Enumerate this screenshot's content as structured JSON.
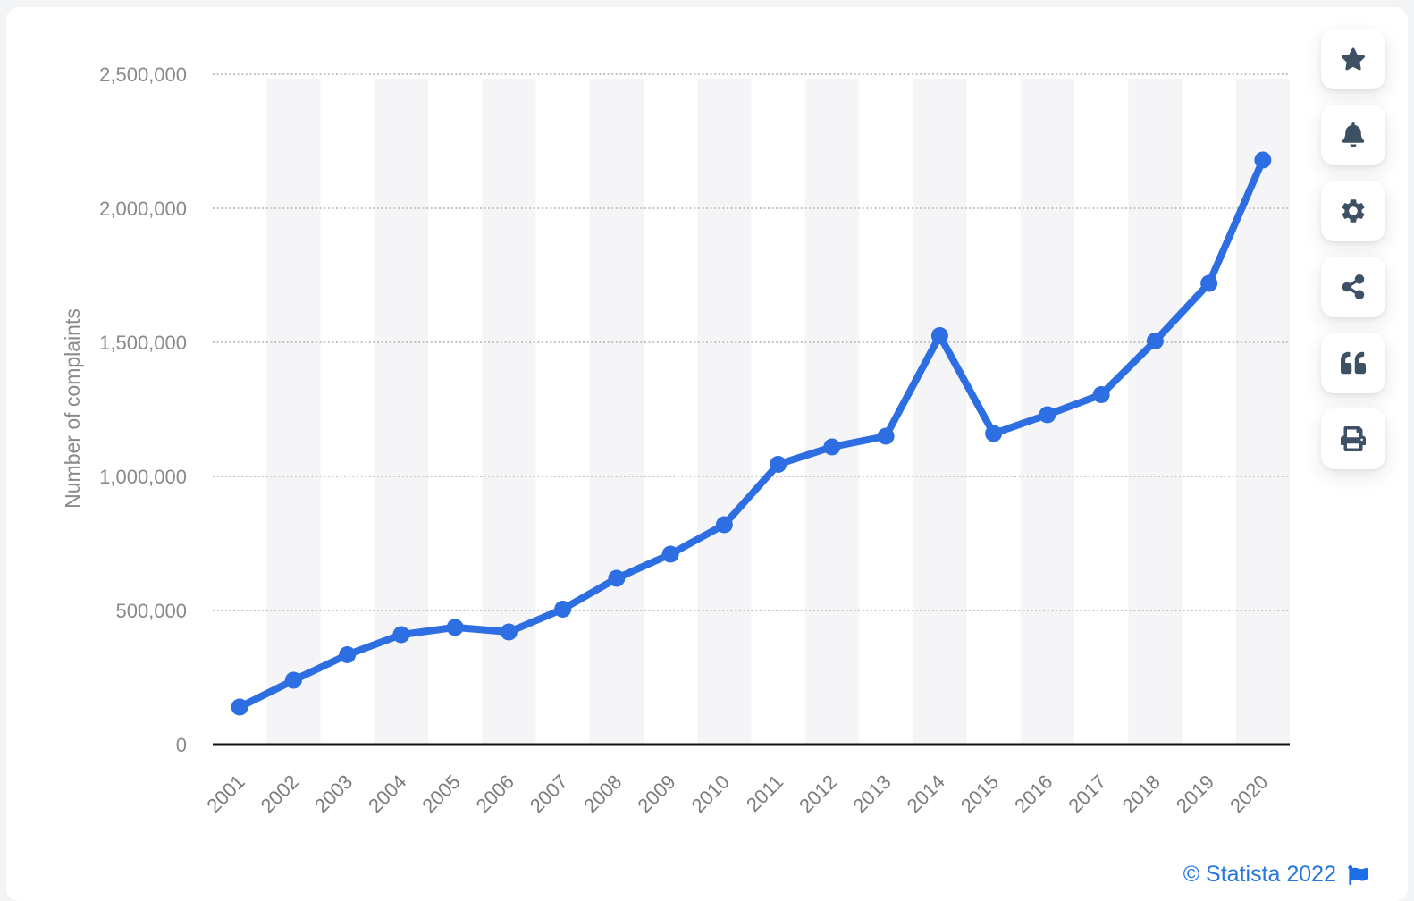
{
  "chart_data": {
    "type": "line",
    "title": "",
    "xlabel": "",
    "ylabel": "Number of complaints",
    "categories": [
      "2001",
      "2002",
      "2003",
      "2004",
      "2005",
      "2006",
      "2007",
      "2008",
      "2009",
      "2010",
      "2011",
      "2012",
      "2013",
      "2014",
      "2015",
      "2016",
      "2017",
      "2018",
      "2019",
      "2020"
    ],
    "series": [
      {
        "name": "Number of complaints",
        "color": "#2d6ee3",
        "values": [
          140000,
          240000,
          335000,
          410000,
          437000,
          420000,
          505000,
          620000,
          710000,
          820000,
          1045000,
          1110000,
          1150000,
          1525000,
          1160000,
          1230000,
          1305000,
          1505000,
          1720000,
          2180000
        ]
      }
    ],
    "ylim": [
      0,
      2500000
    ],
    "ytick_step": 500000,
    "y_tick_labels": [
      "0",
      "500,000",
      "1,000,000",
      "1,500,000",
      "2,000,000",
      "2,500,000"
    ],
    "grid": "horizontal dotted",
    "background_bands": "alternating vertical year stripes",
    "legend": "none"
  },
  "toolbar": {
    "buttons": [
      {
        "name": "favorite",
        "icon": "star-icon"
      },
      {
        "name": "alerts",
        "icon": "bell-icon"
      },
      {
        "name": "settings",
        "icon": "gear-icon"
      },
      {
        "name": "share",
        "icon": "share-icon"
      },
      {
        "name": "cite",
        "icon": "quote-icon"
      },
      {
        "name": "print",
        "icon": "printer-icon"
      }
    ]
  },
  "credit": {
    "text": "© Statista 2022",
    "flag_icon": "flag-icon"
  },
  "colors": {
    "line": "#2d6ee3",
    "band": "#f5f5f7",
    "grid": "#c4c4c4",
    "axis": "#111111",
    "tick_text": "#8a8a8a",
    "icon": "#3e5064",
    "credit_text": "#2577e0",
    "card_bg": "#ffffff",
    "page_bg": "#f3f4f6"
  }
}
